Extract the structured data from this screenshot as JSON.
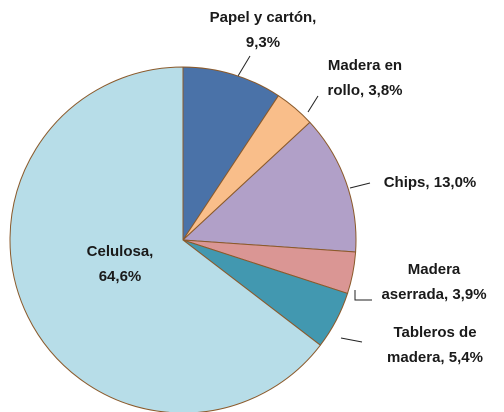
{
  "chart_data": {
    "type": "pie",
    "labels": [
      [
        "Papel y cartón,",
        "9,3%"
      ],
      [
        "Madera en",
        "rollo, 3,8%"
      ],
      [
        "Chips, 13,0%"
      ],
      [
        "Madera",
        "aserrada, 3,9%"
      ],
      [
        "Tableros de",
        "madera, 5,4%"
      ],
      [
        "Celulosa,",
        "64,6%"
      ]
    ],
    "values": [
      9.3,
      3.8,
      13.0,
      3.9,
      5.4,
      64.6
    ],
    "value_labels": [
      "9,3%",
      "3,8%",
      "13,0%",
      "3,9%",
      "5,4%",
      "64,6%"
    ],
    "colors": [
      "#4a72a8",
      "#f9be8a",
      "#b1a0c8",
      "#da9694",
      "#4298b0",
      "#b7dde8"
    ]
  }
}
